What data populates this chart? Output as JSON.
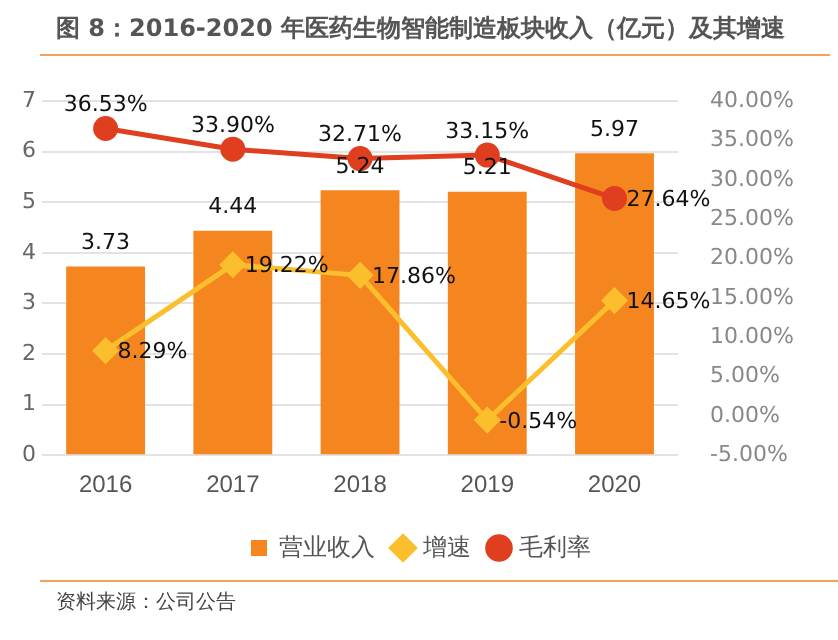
{
  "chart_data": {
    "type": "bar",
    "title": "图 8：2016-2020 年医药生物智能制造板块收入（亿元）及其增速",
    "categories": [
      "2016",
      "2017",
      "2018",
      "2019",
      "2020"
    ],
    "series": [
      {
        "name": "营业收入",
        "color": "#f5861f",
        "values": [
          3.73,
          4.44,
          5.24,
          5.21,
          5.97
        ],
        "value_labels": [
          "3.73",
          "4.44",
          "5.24",
          "5.21",
          "5.97"
        ]
      },
      {
        "name": "增速",
        "type": "line",
        "axis": "y2",
        "color": "#fbbf2d",
        "marker": "diamond",
        "values": [
          8.29,
          19.22,
          17.86,
          -0.54,
          14.65
        ],
        "value_labels": [
          "8.29%",
          "19.22%",
          "17.86%",
          "-0.54%",
          "14.65%"
        ]
      },
      {
        "name": "毛利率",
        "type": "line",
        "axis": "y2",
        "color": "#df3e1f",
        "marker": "circle",
        "values": [
          36.53,
          33.9,
          32.71,
          33.15,
          27.64
        ],
        "value_labels": [
          "36.53%",
          "33.90%",
          "32.71%",
          "33.15%",
          "27.64%"
        ]
      }
    ],
    "ylim": [
      0,
      7
    ],
    "yticks": [
      0,
      1,
      2,
      3,
      4,
      5,
      6,
      7
    ],
    "y2lim": [
      -5,
      40
    ],
    "y2ticks": [
      {
        "value": -5,
        "label": "-5.00%"
      },
      {
        "value": 0,
        "label": "0.00%"
      },
      {
        "value": 5,
        "label": "5.00%"
      },
      {
        "value": 10,
        "label": "10.00%"
      },
      {
        "value": 15,
        "label": "15.00%"
      },
      {
        "value": 20,
        "label": "20.00%"
      },
      {
        "value": 25,
        "label": "25.00%"
      },
      {
        "value": 30,
        "label": "30.00%"
      },
      {
        "value": 35,
        "label": "35.00%"
      },
      {
        "value": 40,
        "label": "40.00%"
      }
    ],
    "grid": "y",
    "legend": "bottom",
    "annotations": [
      "资料来源：公司公告"
    ]
  }
}
